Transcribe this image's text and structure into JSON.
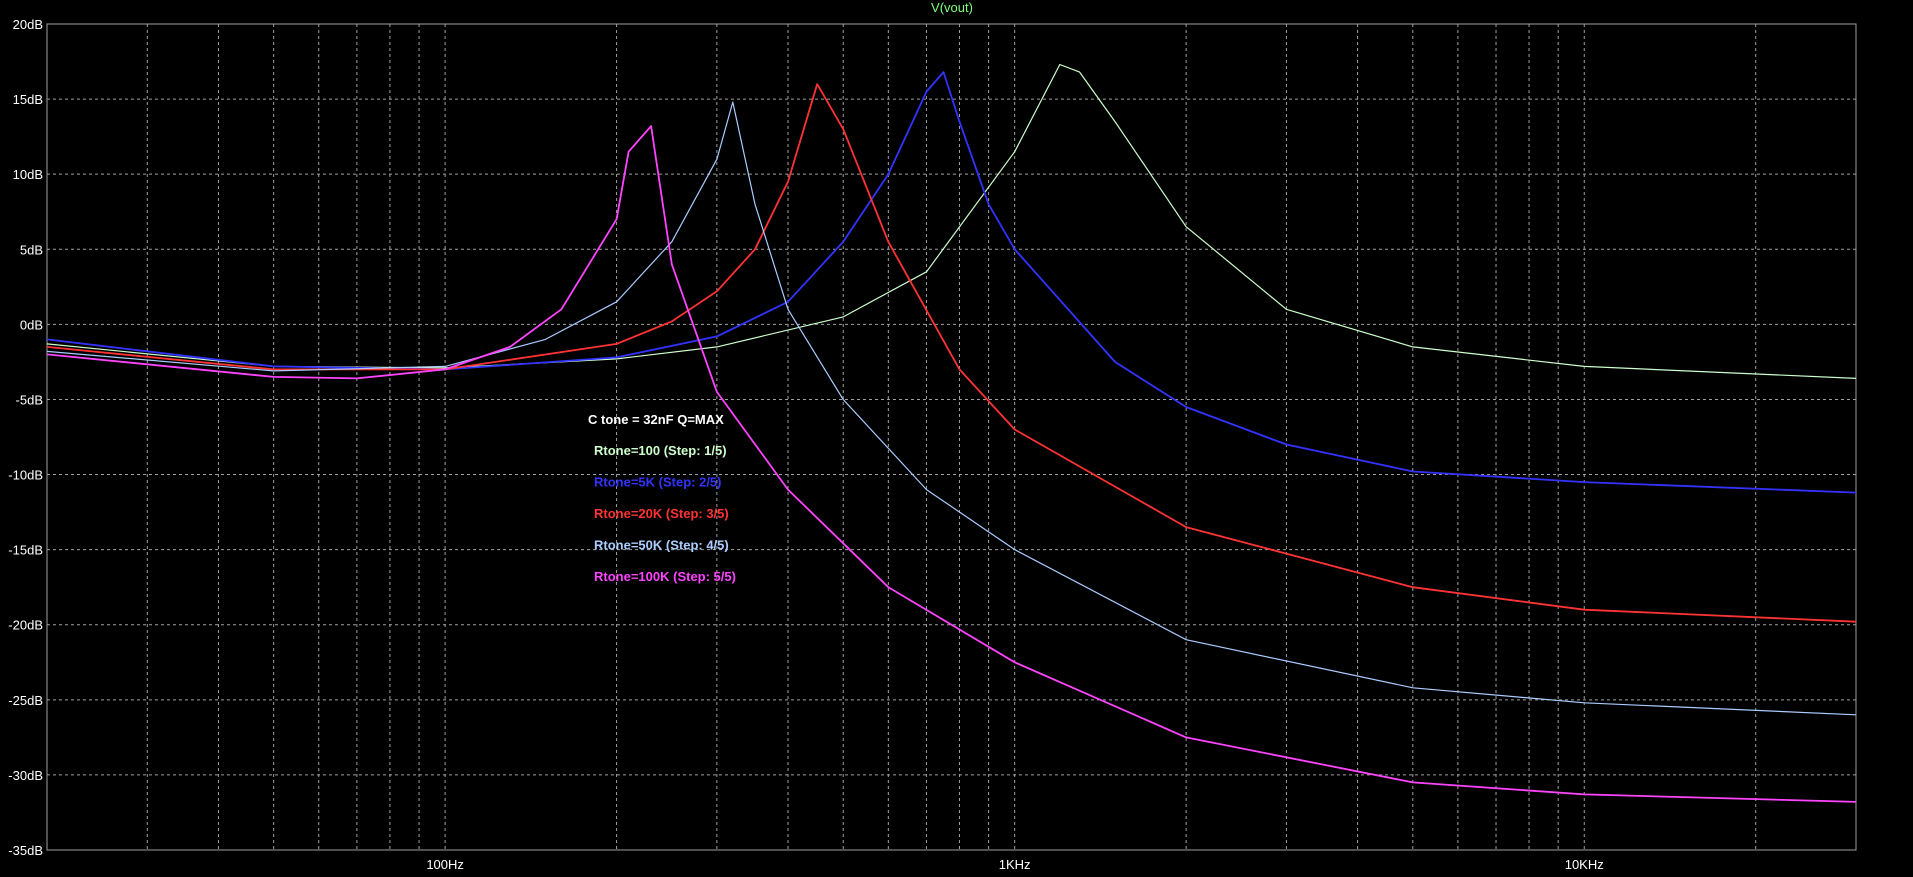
{
  "chart_data": {
    "type": "line",
    "title": "V(vout)",
    "x_scale": "log",
    "xlim": [
      20,
      30000
    ],
    "ylim": [
      -35,
      20
    ],
    "grid": true,
    "background": "#000000",
    "frame_color": "#a0a0a0",
    "grid_color": "#a0a0a0",
    "y_ticks": [
      {
        "value": 20,
        "label": "20dB"
      },
      {
        "value": 15,
        "label": "15dB"
      },
      {
        "value": 10,
        "label": "10dB"
      },
      {
        "value": 5,
        "label": "5dB"
      },
      {
        "value": 0,
        "label": "0dB"
      },
      {
        "value": -5,
        "label": "-5dB"
      },
      {
        "value": -10,
        "label": "-10dB"
      },
      {
        "value": -15,
        "label": "-15dB"
      },
      {
        "value": -20,
        "label": "-20dB"
      },
      {
        "value": -25,
        "label": "-25dB"
      },
      {
        "value": -30,
        "label": "-30dB"
      },
      {
        "value": -35,
        "label": "-35dB"
      }
    ],
    "x_ticks": [
      {
        "value": 100,
        "label": "100Hz"
      },
      {
        "value": 1000,
        "label": "1KHz"
      },
      {
        "value": 10000,
        "label": "10KHz"
      }
    ],
    "annotation_header": {
      "text": "C tone = 32nF Q=MAX",
      "color": "#ffffff"
    },
    "series": [
      {
        "label": "Rtone=100  (Step: 1/5)",
        "color": "#ccffcc",
        "x": [
          20,
          50,
          100,
          200,
          300,
          500,
          700,
          1000,
          1200,
          1300,
          1500,
          2000,
          3000,
          5000,
          10000,
          30000
        ],
        "y": [
          -1.3,
          -2.8,
          -2.9,
          -2.3,
          -1.5,
          0.5,
          3.5,
          11.5,
          17.3,
          16.8,
          13.5,
          6.5,
          1,
          -1.5,
          -2.8,
          -3.6
        ]
      },
      {
        "label": "Rtone=5K  (Step: 2/5)",
        "color": "#3333ff",
        "x": [
          20,
          50,
          100,
          200,
          300,
          400,
          500,
          600,
          700,
          750,
          800,
          900,
          1000,
          1500,
          2000,
          3000,
          5000,
          10000,
          30000
        ],
        "y": [
          -1,
          -2.8,
          -3,
          -2.2,
          -0.8,
          1.5,
          5.5,
          10,
          15.5,
          16.8,
          13.5,
          8,
          5,
          -2.5,
          -5.5,
          -8,
          -9.8,
          -10.5,
          -11.2
        ]
      },
      {
        "label": "Rtone=20K  (Step: 3/5)",
        "color": "#ff3333",
        "x": [
          20,
          50,
          100,
          200,
          250,
          300,
          350,
          400,
          450,
          500,
          600,
          800,
          1000,
          2000,
          5000,
          10000,
          30000
        ],
        "y": [
          -1.5,
          -3,
          -3,
          -1.3,
          0.2,
          2.2,
          5,
          9.5,
          16,
          13,
          5.5,
          -3,
          -7,
          -13.5,
          -17.5,
          -19,
          -19.8
        ]
      },
      {
        "label": "Rtone=50K  (Step: 4/5)",
        "color": "#aaccff",
        "x": [
          20,
          50,
          100,
          150,
          200,
          250,
          300,
          320,
          350,
          400,
          500,
          700,
          1000,
          2000,
          5000,
          10000,
          30000
        ],
        "y": [
          -1.8,
          -3.1,
          -2.8,
          -1,
          1.5,
          5.5,
          11,
          14.8,
          8,
          1,
          -5,
          -11,
          -15,
          -21,
          -24.2,
          -25.2,
          -26
        ]
      },
      {
        "label": "Rtone=100K  (Step: 5/5)",
        "color": "#ff44ff",
        "x": [
          20,
          50,
          70,
          100,
          130,
          160,
          200,
          210,
          230,
          250,
          300,
          400,
          600,
          1000,
          2000,
          5000,
          10000,
          30000
        ],
        "y": [
          -2,
          -3.5,
          -3.6,
          -3,
          -1.5,
          1,
          7,
          11.5,
          13.2,
          4,
          -4.5,
          -11,
          -17.5,
          -22.5,
          -27.5,
          -30.5,
          -31.3,
          -31.8
        ]
      }
    ]
  }
}
